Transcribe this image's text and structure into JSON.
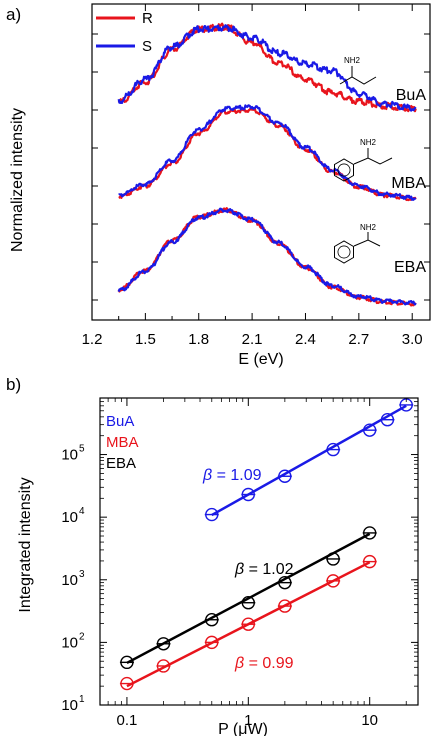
{
  "chart_data": [
    {
      "panel_label": "a)",
      "type": "line",
      "xlabel": "E (eV)",
      "ylabel": "Normalized intensity",
      "xlim": [
        1.2,
        3.1
      ],
      "xticks": [
        "1.2",
        "1.5",
        "1.8",
        "2.1",
        "2.4",
        "2.7",
        "3.0"
      ],
      "legend": {
        "position": "top-left",
        "entries": [
          {
            "name": "R",
            "color": "#e8141c"
          },
          {
            "name": "S",
            "color": "#1a1ae6"
          }
        ]
      },
      "traces": [
        {
          "sample": "BuA",
          "label": "BuA",
          "molecule_label": "NH2",
          "series": [
            {
              "name": "R",
              "color": "#e8141c",
              "x": [
                1.35,
                1.5,
                1.65,
                1.8,
                1.95,
                2.1,
                2.25,
                2.4,
                2.55,
                2.7,
                2.85,
                3.02
              ],
              "y": [
                0.17,
                0.37,
                0.68,
                0.93,
                1.0,
                0.89,
                0.65,
                0.4,
                0.2,
                0.09,
                0.04,
                0.02
              ]
            },
            {
              "name": "S",
              "color": "#1a1ae6",
              "x": [
                1.35,
                1.5,
                1.65,
                1.8,
                1.95,
                2.1,
                2.25,
                2.4,
                2.55,
                2.7,
                2.85,
                3.02
              ],
              "y": [
                0.16,
                0.36,
                0.67,
                0.92,
                1.0,
                0.9,
                0.66,
                0.41,
                0.21,
                0.1,
                0.05,
                0.03
              ]
            }
          ]
        },
        {
          "sample": "MBA",
          "label": "MBA",
          "molecule_label": "NH2",
          "series": [
            {
              "name": "R",
              "color": "#e8141c",
              "x": [
                1.35,
                1.5,
                1.65,
                1.8,
                1.95,
                2.1,
                2.25,
                2.4,
                2.55,
                2.7,
                2.85,
                3.02
              ],
              "y": [
                0.05,
                0.16,
                0.4,
                0.72,
                0.95,
                0.97,
                0.8,
                0.55,
                0.31,
                0.15,
                0.06,
                0.02
              ]
            },
            {
              "name": "S",
              "color": "#1a1ae6",
              "x": [
                1.35,
                1.5,
                1.65,
                1.8,
                1.95,
                2.1,
                2.25,
                2.4,
                2.55,
                2.7,
                2.85,
                3.02
              ],
              "y": [
                0.06,
                0.18,
                0.43,
                0.76,
                0.98,
                1.0,
                0.83,
                0.57,
                0.33,
                0.16,
                0.07,
                0.03
              ]
            }
          ]
        },
        {
          "sample": "EBA",
          "label": "EBA",
          "molecule_label": "NH2",
          "series": [
            {
              "name": "R",
              "color": "#e8141c",
              "x": [
                1.35,
                1.5,
                1.65,
                1.8,
                1.95,
                2.1,
                2.25,
                2.4,
                2.55,
                2.7,
                2.85,
                3.02
              ],
              "y": [
                0.12,
                0.35,
                0.72,
                0.95,
                0.98,
                0.8,
                0.57,
                0.38,
                0.23,
                0.13,
                0.08,
                0.05
              ]
            },
            {
              "name": "S",
              "color": "#1a1ae6",
              "x": [
                1.35,
                1.5,
                1.65,
                1.8,
                1.95,
                2.1,
                2.25,
                2.4,
                2.55,
                2.7,
                2.85,
                3.02
              ],
              "y": [
                0.14,
                0.38,
                0.75,
                0.95,
                0.97,
                0.86,
                0.68,
                0.56,
                0.48,
                0.22,
                0.1,
                0.05
              ]
            }
          ]
        }
      ]
    },
    {
      "panel_label": "b)",
      "type": "scatter",
      "scale": "log-log",
      "xlabel": "P (μW)",
      "ylabel": "Integrated intensity",
      "xlim": [
        0.06,
        25
      ],
      "ylim": [
        10,
        800000
      ],
      "xticks": [
        "0.1",
        "1",
        "10"
      ],
      "yticks": [
        {
          "base": "10",
          "exp": "1"
        },
        {
          "base": "10",
          "exp": "2"
        },
        {
          "base": "10",
          "exp": "3"
        },
        {
          "base": "10",
          "exp": "4"
        },
        {
          "base": "10",
          "exp": "5"
        }
      ],
      "legend": {
        "position": "top-left",
        "entries": [
          {
            "name": "BuA",
            "color": "#1a1ae6"
          },
          {
            "name": "MBA",
            "color": "#e8141c"
          },
          {
            "name": "EBA",
            "color": "#000000"
          }
        ]
      },
      "series": [
        {
          "name": "BuA",
          "color": "#1a1ae6",
          "beta_symbol": "β",
          "beta_text": " = 1.09",
          "x": [
            0.5,
            1,
            2,
            5,
            10,
            14,
            20
          ],
          "y": [
            11000,
            23000,
            45000,
            120000,
            245000,
            360000,
            620000
          ],
          "fit": [
            [
              0.5,
              10800
            ],
            [
              20,
              600000
            ]
          ]
        },
        {
          "name": "EBA",
          "color": "#000000",
          "beta_symbol": "β",
          "beta_text": " = 1.02",
          "x": [
            0.1,
            0.2,
            0.5,
            1,
            2,
            5,
            10
          ],
          "y": [
            48,
            95,
            230,
            430,
            900,
            2150,
            5600
          ],
          "fit": [
            [
              0.1,
              47
            ],
            [
              10,
              5400
            ]
          ]
        },
        {
          "name": "MBA",
          "color": "#e8141c",
          "beta_symbol": "β",
          "beta_text": " = 0.99",
          "x": [
            0.1,
            0.2,
            0.5,
            1,
            2,
            5,
            10
          ],
          "y": [
            22,
            42,
            100,
            195,
            380,
            960,
            1950
          ],
          "fit": [
            [
              0.1,
              20
            ],
            [
              10,
              1900
            ]
          ]
        }
      ]
    }
  ]
}
